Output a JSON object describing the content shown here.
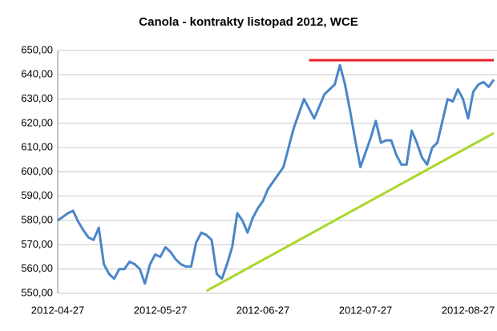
{
  "chart_data": {
    "type": "line",
    "title": "Canola - kontrakty listopad 2012, WCE",
    "categories": [
      "2012-04-27",
      null,
      null,
      null,
      null,
      null,
      null,
      null,
      null,
      null,
      null,
      null,
      null,
      null,
      null,
      null,
      null,
      null,
      null,
      null,
      "2012-05-27",
      null,
      null,
      null,
      null,
      null,
      null,
      null,
      null,
      null,
      null,
      null,
      null,
      null,
      null,
      null,
      null,
      null,
      null,
      null,
      "2012-06-27",
      null,
      null,
      null,
      null,
      null,
      null,
      null,
      null,
      null,
      null,
      null,
      null,
      null,
      null,
      null,
      null,
      null,
      null,
      null,
      "2012-07-27",
      null,
      null,
      null,
      null,
      null,
      null,
      null,
      null,
      null,
      null,
      null,
      null,
      null,
      null,
      null,
      null,
      null,
      null,
      null,
      "2012-08-27",
      null,
      null,
      null,
      null,
      null
    ],
    "series": [
      {
        "color": "#4a86c8",
        "values": [
          580,
          581.5,
          583,
          584,
          579.5,
          576,
          573,
          572,
          577,
          562,
          558,
          556,
          560,
          560,
          563,
          562,
          560,
          554,
          562,
          566,
          565,
          569,
          567,
          564,
          562,
          561,
          561,
          571,
          575,
          574,
          572,
          558,
          556,
          562,
          569,
          583,
          580,
          575,
          581,
          585,
          588,
          593,
          596,
          599,
          602,
          610,
          618,
          624,
          630,
          626,
          622,
          627,
          632,
          634,
          636,
          644,
          636,
          625,
          613,
          602,
          608,
          614,
          621,
          612,
          613,
          613,
          607,
          603,
          603,
          617,
          612,
          606,
          603,
          610,
          612,
          621,
          630,
          629,
          634,
          630,
          622,
          633,
          636,
          637,
          635,
          638
        ]
      }
    ],
    "trendlines": [
      {
        "color": "#e8202a",
        "x": [
          49,
          85
        ],
        "values": [
          646,
          646
        ]
      },
      {
        "color": "#a8d82a",
        "x": [
          29,
          85
        ],
        "values": [
          551,
          616
        ]
      }
    ],
    "ylim": [
      550,
      650
    ],
    "yticks": [
      {
        "value": 550,
        "label": "550,00"
      },
      {
        "value": 560,
        "label": "560,00"
      },
      {
        "value": 570,
        "label": "570,00"
      },
      {
        "value": 580,
        "label": "580,00"
      },
      {
        "value": 590,
        "label": "590,00"
      },
      {
        "value": 600,
        "label": "600,00"
      },
      {
        "value": 610,
        "label": "610,00"
      },
      {
        "value": 620,
        "label": "620,00"
      },
      {
        "value": 630,
        "label": "630,00"
      },
      {
        "value": 640,
        "label": "640,00"
      },
      {
        "value": 650,
        "label": "650,00"
      }
    ],
    "grid": true
  }
}
